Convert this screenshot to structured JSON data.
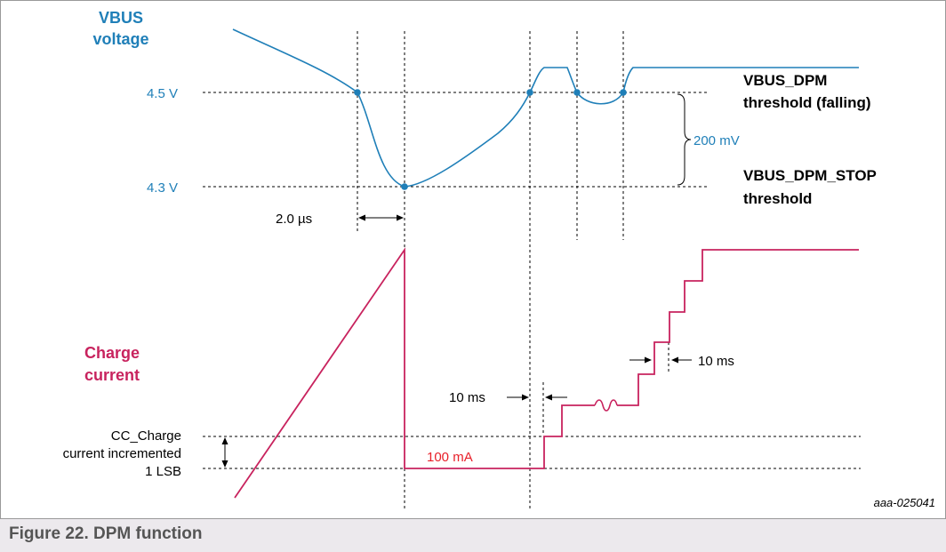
{
  "colors": {
    "vbus": "#1f7fb8",
    "current": "#c8235e",
    "current_bright": "#e8202a",
    "guide": "#000000",
    "border": "#999999",
    "caption": "#555555"
  },
  "labels": {
    "vbus_title_line1": "VBUS",
    "vbus_title_line2": "voltage",
    "v_high": "4.5 V",
    "v_low": "4.3 V",
    "delta_mv": "200 mV",
    "dpm_falling_line1": "VBUS_DPM",
    "dpm_falling_line2": "threshold (falling)",
    "dpm_stop_line1": "VBUS_DPM_STOP",
    "dpm_stop_line2": "threshold",
    "delay_us": "2.0 µs",
    "charge_title_line1": "Charge",
    "charge_title_line2": "current",
    "cc_line1": "CC_Charge",
    "cc_line2": "current incremented",
    "cc_line3": "1 LSB",
    "ms_left": "10 ms",
    "ms_right": "10 ms",
    "current_100ma": "100 mA",
    "figure_id": "aaa-025041"
  },
  "caption": "Figure 22.  DPM function"
}
